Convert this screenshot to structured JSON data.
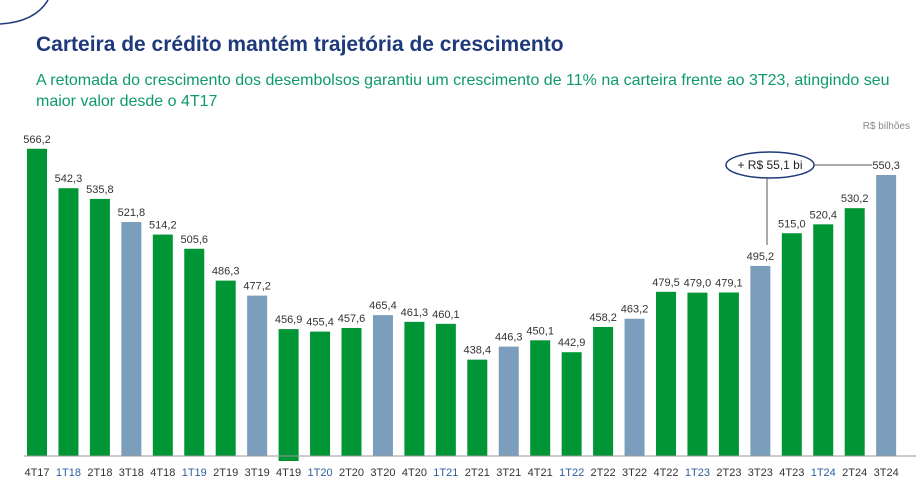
{
  "title": "Carteira de crédito mantém trajetória de crescimento",
  "subtitle": "A retomada do crescimento dos desembolsos garantiu um crescimento de 11% na carteira frente ao 3T23, atingindo seu maior valor desde o 4T17",
  "unit": "R$ bilhões",
  "colors": {
    "green": "#009535",
    "blue": "#7a9ebb",
    "title": "#1f3a7a"
  },
  "chart_data": {
    "type": "bar",
    "title": "Carteira de crédito",
    "xlabel": "",
    "ylabel": "R$ bilhões",
    "ylim": [
      380,
      600
    ],
    "categories": [
      "4T17",
      "1T18",
      "2T18",
      "3T18",
      "4T18",
      "1T19",
      "2T19",
      "3T19",
      "4T19",
      "1T20",
      "2T20",
      "3T20",
      "4T20",
      "1T21",
      "2T21",
      "3T21",
      "4T21",
      "1T22",
      "2T22",
      "3T22",
      "4T22",
      "1T23",
      "2T23",
      "3T23",
      "4T23",
      "1T24",
      "2T24",
      "3T24"
    ],
    "values": [
      566.2,
      542.3,
      535.8,
      521.8,
      514.2,
      505.6,
      486.3,
      477.2,
      456.9,
      455.4,
      457.6,
      465.4,
      461.3,
      460.1,
      438.4,
      446.3,
      450.1,
      442.9,
      458.2,
      463.2,
      479.5,
      479.0,
      479.1,
      495.2,
      515.0,
      520.4,
      530.2,
      550.3
    ],
    "labels": [
      "566,2",
      "542,3",
      "535,8",
      "521,8",
      "514,2",
      "505,6",
      "486,3",
      "477,2",
      "456,9",
      "455,4",
      "457,6",
      "465,4",
      "461,3",
      "460,1",
      "438,4",
      "446,3",
      "450,1",
      "442,9",
      "458,2",
      "463,2",
      "479,5",
      "479,0",
      "479,1",
      "495,2",
      "515,0",
      "520,4",
      "530,2",
      "550,3"
    ],
    "annotation": "+ R$ 55,1 bi"
  }
}
